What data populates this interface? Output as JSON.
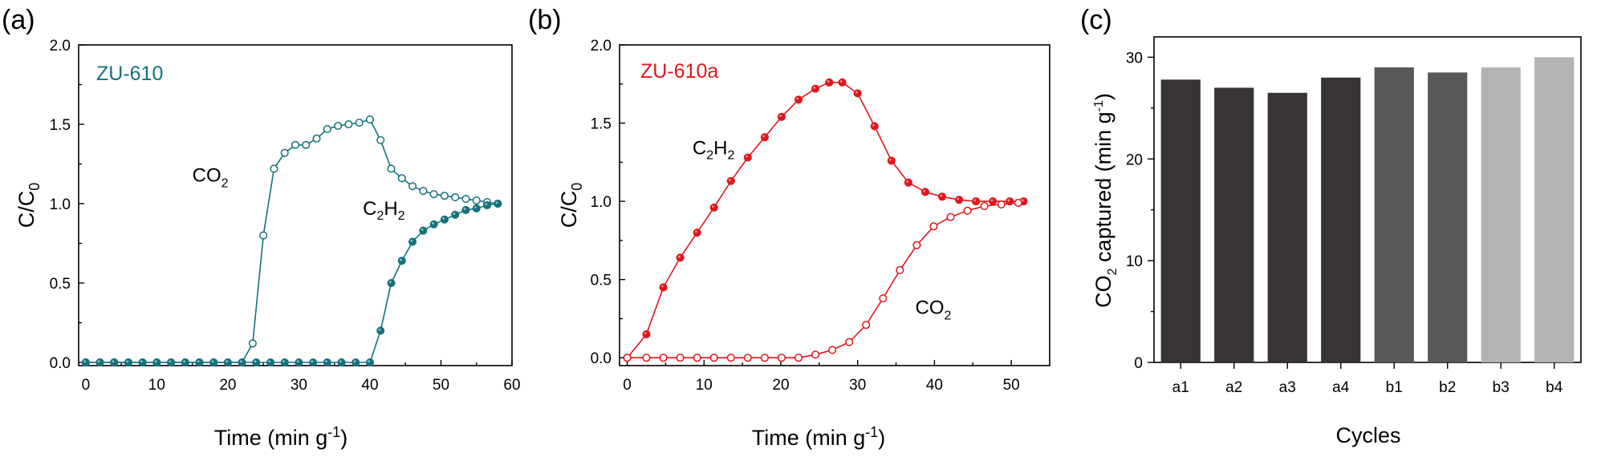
{
  "chart_data": [
    {
      "type": "line",
      "panel_label": "(a)",
      "sample_label": "ZU-610",
      "sample_color": "#14727c",
      "marker_color": "#14727c",
      "xlabel": "Time (min g",
      "xlabel_sup": "-1",
      "xlabel_close": ")",
      "ylabel": "C/C",
      "ylabel_sub": "0",
      "xlim": [
        -1,
        60
      ],
      "ylim": [
        -0.02,
        2.0
      ],
      "xticks": [
        0,
        10,
        20,
        30,
        40,
        50,
        60
      ],
      "yticks": [
        0.0,
        0.5,
        1.0,
        1.5,
        2.0
      ],
      "yticklabels": [
        "0.0",
        "0.5",
        "1.0",
        "1.5",
        "2.0"
      ],
      "series": [
        {
          "annotation": [
            "CO",
            "2",
            ""
          ],
          "annot_pos": [
            15,
            1.14
          ],
          "marker": "open",
          "x": [
            0,
            2,
            4,
            6,
            8,
            10,
            12,
            14,
            16,
            18,
            20,
            22,
            23.5,
            25,
            26.5,
            28,
            29.5,
            31,
            32.5,
            34,
            35.5,
            37,
            38.5,
            40,
            41.5,
            43,
            44.5,
            46,
            47.5,
            49,
            50.5,
            52,
            53.5,
            55,
            56.5,
            58
          ],
          "y": [
            0,
            0,
            0,
            0,
            0,
            0,
            0,
            0,
            0,
            0,
            0,
            0,
            0.12,
            0.8,
            1.22,
            1.32,
            1.37,
            1.37,
            1.41,
            1.47,
            1.49,
            1.5,
            1.51,
            1.53,
            1.4,
            1.22,
            1.16,
            1.11,
            1.08,
            1.06,
            1.05,
            1.04,
            1.03,
            1.02,
            1.01,
            1.0
          ]
        },
        {
          "annotation": [
            "C",
            "2",
            "H",
            "2"
          ],
          "annot_pos": [
            39,
            0.93
          ],
          "marker": "filled",
          "x": [
            0,
            2,
            4,
            6,
            8,
            10,
            12,
            14,
            16,
            18,
            20,
            22,
            24,
            26,
            28,
            30,
            32,
            34,
            36,
            38,
            40,
            41.5,
            43,
            44.5,
            46,
            47.5,
            49,
            50.5,
            52,
            53.5,
            55,
            56.5,
            58
          ],
          "y": [
            0,
            0,
            0,
            0,
            0,
            0,
            0,
            0,
            0,
            0,
            0,
            0,
            0,
            0,
            0,
            0,
            0,
            0,
            0,
            0,
            0,
            0.2,
            0.5,
            0.64,
            0.76,
            0.83,
            0.87,
            0.9,
            0.93,
            0.96,
            0.97,
            0.99,
            1.0
          ]
        }
      ]
    },
    {
      "type": "line",
      "panel_label": "(b)",
      "sample_label": "ZU-610a",
      "sample_color": "#e0161a",
      "marker_color": "#e0161a",
      "xlabel": "Time (min g",
      "xlabel_sup": "-1",
      "xlabel_close": ")",
      "ylabel": "C/C",
      "ylabel_sub": "0",
      "xlim": [
        -1,
        55
      ],
      "ylim": [
        -0.05,
        2.0
      ],
      "xticks": [
        0,
        10,
        20,
        30,
        40,
        50
      ],
      "yticks": [
        0.0,
        0.5,
        1.0,
        1.5,
        2.0
      ],
      "yticklabels": [
        "0.0",
        "0.5",
        "1.0",
        "1.5",
        "2.0"
      ],
      "series": [
        {
          "annotation": [
            "C",
            "2",
            "H",
            "2"
          ],
          "annot_pos": [
            8.5,
            1.3
          ],
          "marker": "filled",
          "x": [
            0,
            2.5,
            4.7,
            6.9,
            9.1,
            11.3,
            13.5,
            15.7,
            17.9,
            20.1,
            22.3,
            24.5,
            26.3,
            28,
            30,
            32.2,
            34.4,
            36.6,
            38.8,
            41,
            43.2,
            45.4,
            47.6,
            49.8,
            51.6
          ],
          "y": [
            0,
            0.15,
            0.45,
            0.64,
            0.8,
            0.96,
            1.13,
            1.28,
            1.41,
            1.54,
            1.65,
            1.72,
            1.76,
            1.76,
            1.69,
            1.48,
            1.26,
            1.12,
            1.06,
            1.03,
            1.01,
            1.0,
            1.0,
            1.0,
            1.0
          ],
          "fill": "#e0161a"
        },
        {
          "annotation": [
            "CO",
            "2",
            ""
          ],
          "annot_pos": [
            37.5,
            0.28
          ],
          "marker": "open",
          "x": [
            0,
            2.5,
            4.7,
            6.9,
            9.1,
            11.3,
            13.5,
            15.7,
            17.9,
            20.1,
            22.3,
            24.5,
            26.7,
            28.9,
            31.1,
            33.3,
            35.5,
            37.7,
            39.9,
            42.1,
            44.3,
            46.5,
            48.7,
            50.9
          ],
          "y": [
            0,
            0,
            0,
            0,
            0,
            0,
            0,
            0,
            0,
            0,
            0,
            0.02,
            0.05,
            0.1,
            0.21,
            0.38,
            0.56,
            0.72,
            0.84,
            0.9,
            0.94,
            0.97,
            0.98,
            0.99
          ]
        }
      ]
    },
    {
      "type": "bar",
      "panel_label": "(c)",
      "categories": [
        "a1",
        "a2",
        "a3",
        "a4",
        "b1",
        "b2",
        "b3",
        "b4"
      ],
      "values": [
        27.8,
        27.0,
        26.5,
        28.0,
        29.0,
        28.5,
        29.0,
        30.0
      ],
      "colors": [
        "#383435",
        "#383435",
        "#383435",
        "#383435",
        "#5a5758",
        "#5a5758",
        "#b3b3b3",
        "#b3b3b3"
      ],
      "xlabel": "Cycles",
      "ylabel_pre": "CO",
      "ylabel_sub": "2",
      "ylabel_post": " captured (min g",
      "ylabel_sup": "-1",
      "ylabel_close": ")",
      "ylim": [
        0,
        32
      ],
      "yticks": [
        0,
        10,
        20,
        30
      ],
      "yticklabels": [
        "0",
        "10",
        "20",
        "30"
      ]
    }
  ]
}
